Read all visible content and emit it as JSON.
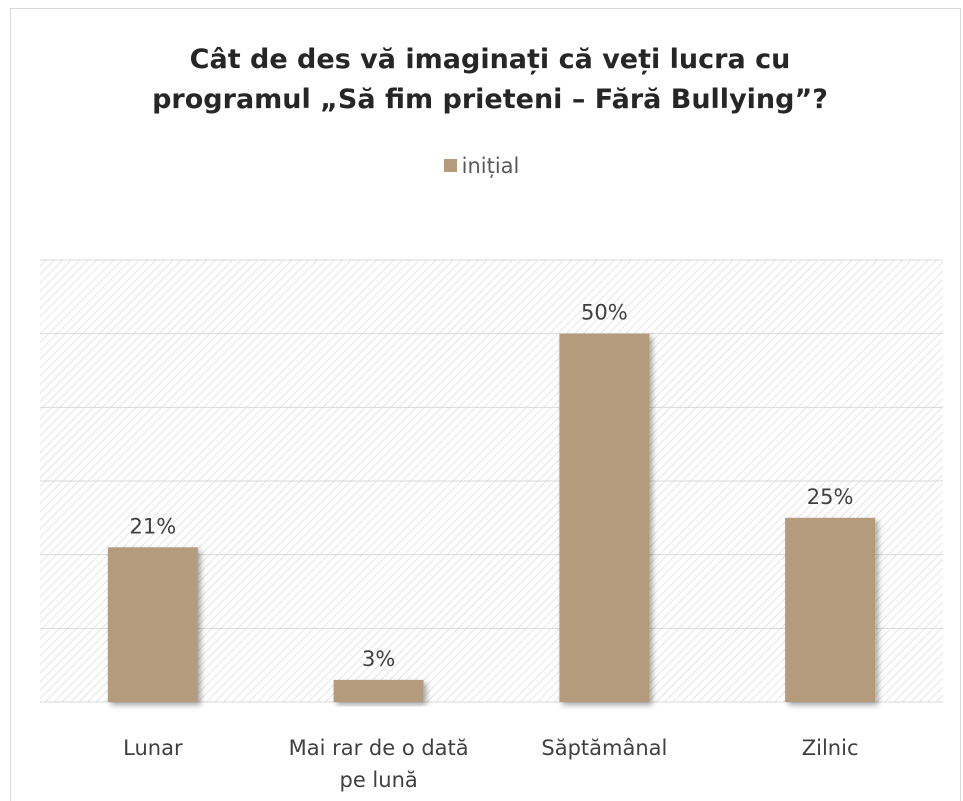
{
  "chart_data": {
    "type": "bar",
    "title": "Cât de des vă imaginați că veți lucra cu programul „Să fim prieteni – Fără Bullying”?",
    "categories": [
      "Lunar",
      "Mai rar de o dată pe lună",
      "Săptămânal",
      "Zilnic"
    ],
    "series": [
      {
        "name": "inițial",
        "color": "#b39b7b",
        "values": [
          21,
          3,
          50,
          25
        ],
        "value_labels": [
          "21%",
          "3%",
          "50%",
          "25%"
        ]
      }
    ],
    "ylim": [
      0,
      60
    ],
    "yticks": [
      0,
      10,
      20,
      30,
      40,
      50,
      60
    ],
    "grid": true,
    "legend": "top"
  }
}
